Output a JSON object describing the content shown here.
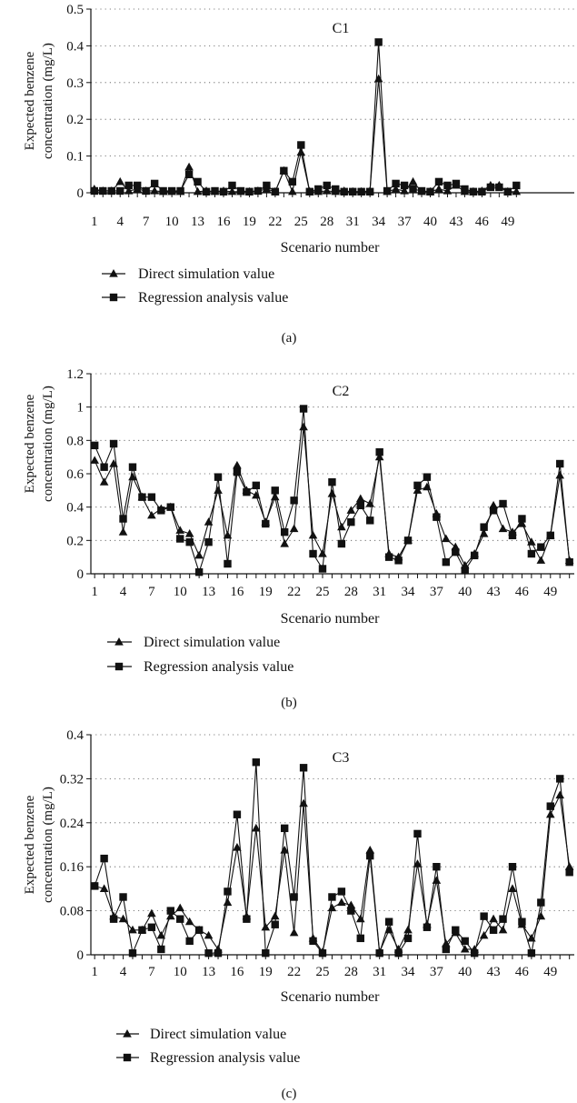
{
  "chart_data": [
    {
      "type": "line",
      "panel_label": "(a)",
      "annotation": "C1",
      "xlabel": "Scenario number",
      "ylabel": [
        "Expected benzene",
        "concentration (mg/L)"
      ],
      "ylim": [
        0,
        0.5
      ],
      "yticks": [
        "0",
        "0.1",
        "0.2",
        "0.3",
        "0.4",
        "0.5"
      ],
      "xticks": [
        1,
        4,
        7,
        10,
        13,
        16,
        19,
        22,
        25,
        28,
        31,
        34,
        37,
        40,
        43,
        46,
        49
      ],
      "grid": "horizontal dotted",
      "x": [
        1,
        2,
        3,
        4,
        5,
        6,
        7,
        8,
        9,
        10,
        11,
        12,
        13,
        14,
        15,
        16,
        17,
        18,
        19,
        20,
        21,
        22,
        23,
        24,
        25,
        26,
        27,
        28,
        29,
        30,
        31,
        32,
        33,
        34,
        35,
        36,
        37,
        38,
        39,
        40,
        41,
        42,
        43,
        44,
        45,
        46,
        47,
        48,
        49,
        50
      ],
      "series": [
        {
          "name": "Direct simulation value",
          "marker": "triangle",
          "values": [
            0.01,
            0.005,
            0.005,
            0.03,
            0.005,
            0.01,
            0.005,
            0.005,
            0.003,
            0.003,
            0.003,
            0.07,
            0.003,
            0.005,
            0.003,
            0.005,
            0.003,
            0.003,
            0.003,
            0.005,
            0.01,
            0.003,
            0.06,
            0.003,
            0.11,
            0.003,
            0.003,
            0.005,
            0.003,
            0.005,
            0.003,
            0.003,
            0.005,
            0.31,
            0.003,
            0.01,
            0.005,
            0.03,
            0.003,
            0.003,
            0.01,
            0.005,
            0.02,
            0.003,
            0.003,
            0.005,
            0.02,
            0.02,
            0.003,
            0.003
          ]
        },
        {
          "name": "Regression analysis value",
          "marker": "square",
          "values": [
            0.005,
            0.005,
            0.005,
            0.005,
            0.02,
            0.02,
            0.005,
            0.025,
            0.005,
            0.005,
            0.005,
            0.05,
            0.03,
            0.003,
            0.005,
            0.003,
            0.02,
            0.005,
            0.003,
            0.005,
            0.02,
            0.003,
            0.06,
            0.03,
            0.13,
            0.003,
            0.01,
            0.02,
            0.01,
            0.003,
            0.003,
            0.003,
            0.003,
            0.41,
            0.005,
            0.025,
            0.02,
            0.01,
            0.005,
            0.003,
            0.03,
            0.02,
            0.025,
            0.01,
            0.003,
            0.003,
            0.015,
            0.015,
            0.003,
            0.02
          ]
        }
      ]
    },
    {
      "type": "line",
      "panel_label": "(b)",
      "annotation": "C2",
      "xlabel": "Scenario number",
      "ylabel": [
        "Expected benzene",
        "concentration (mg/L)"
      ],
      "ylim": [
        0,
        1.2
      ],
      "yticks": [
        "0",
        "0.2",
        "0.4",
        "0.6",
        "0.8",
        "1",
        "1.2"
      ],
      "xticks": [
        1,
        4,
        7,
        10,
        13,
        16,
        19,
        22,
        25,
        28,
        31,
        34,
        37,
        40,
        43,
        46,
        49
      ],
      "grid": "horizontal dotted",
      "x": [
        1,
        2,
        3,
        4,
        5,
        6,
        7,
        8,
        9,
        10,
        11,
        12,
        13,
        14,
        15,
        16,
        17,
        18,
        19,
        20,
        21,
        22,
        23,
        24,
        25,
        26,
        27,
        28,
        29,
        30,
        31,
        32,
        33,
        34,
        35,
        36,
        37,
        38,
        39,
        40,
        41,
        42,
        43,
        44,
        45,
        46,
        47,
        48,
        49,
        50,
        51
      ],
      "series": [
        {
          "name": "Direct simulation value",
          "marker": "triangle",
          "values": [
            0.68,
            0.55,
            0.66,
            0.25,
            0.58,
            0.46,
            0.35,
            0.39,
            0.4,
            0.26,
            0.24,
            0.11,
            0.31,
            0.5,
            0.23,
            0.65,
            0.5,
            0.47,
            0.31,
            0.46,
            0.18,
            0.27,
            0.88,
            0.23,
            0.12,
            0.48,
            0.28,
            0.38,
            0.45,
            0.42,
            0.7,
            0.12,
            0.1,
            0.2,
            0.5,
            0.52,
            0.36,
            0.21,
            0.16,
            0.05,
            0.12,
            0.24,
            0.41,
            0.27,
            0.25,
            0.3,
            0.19,
            0.08,
            0.23,
            0.59,
            0.08
          ]
        },
        {
          "name": "Regression analysis value",
          "marker": "square",
          "values": [
            0.77,
            0.64,
            0.78,
            0.33,
            0.64,
            0.46,
            0.46,
            0.38,
            0.4,
            0.21,
            0.19,
            0.01,
            0.19,
            0.58,
            0.06,
            0.61,
            0.49,
            0.53,
            0.3,
            0.5,
            0.25,
            0.44,
            0.99,
            0.12,
            0.03,
            0.55,
            0.18,
            0.31,
            0.41,
            0.32,
            0.73,
            0.1,
            0.08,
            0.2,
            0.53,
            0.58,
            0.34,
            0.07,
            0.13,
            0.02,
            0.11,
            0.28,
            0.38,
            0.42,
            0.23,
            0.33,
            0.12,
            0.16,
            0.23,
            0.66,
            0.07
          ]
        }
      ]
    },
    {
      "type": "line",
      "panel_label": "(c)",
      "annotation": "C3",
      "xlabel": "Scenario number",
      "ylabel": [
        "Expected benzene",
        "concentration (mg/L)"
      ],
      "ylim": [
        0,
        0.4
      ],
      "yticks": [
        "0",
        "0.08",
        "0.16",
        "0.24",
        "0.32",
        "0.4"
      ],
      "xticks": [
        1,
        4,
        7,
        10,
        13,
        16,
        19,
        22,
        25,
        28,
        31,
        34,
        37,
        40,
        43,
        46,
        49
      ],
      "grid": "horizontal dotted",
      "x": [
        1,
        2,
        3,
        4,
        5,
        6,
        7,
        8,
        9,
        10,
        11,
        12,
        13,
        14,
        15,
        16,
        17,
        18,
        19,
        20,
        21,
        22,
        23,
        24,
        25,
        26,
        27,
        28,
        29,
        30,
        31,
        32,
        33,
        34,
        35,
        36,
        37,
        38,
        39,
        40,
        41,
        42,
        43,
        44,
        45,
        46,
        47,
        48,
        49,
        50,
        51
      ],
      "series": [
        {
          "name": "Direct simulation value",
          "marker": "triangle",
          "values": [
            0.125,
            0.12,
            0.07,
            0.065,
            0.045,
            0.045,
            0.075,
            0.035,
            0.07,
            0.085,
            0.06,
            0.045,
            0.035,
            0.01,
            0.095,
            0.195,
            0.07,
            0.23,
            0.05,
            0.07,
            0.19,
            0.04,
            0.275,
            0.03,
            0.005,
            0.085,
            0.095,
            0.09,
            0.065,
            0.19,
            0.005,
            0.045,
            0.01,
            0.045,
            0.165,
            0.055,
            0.135,
            0.02,
            0.04,
            0.01,
            0.01,
            0.035,
            0.065,
            0.045,
            0.12,
            0.055,
            0.03,
            0.07,
            0.255,
            0.29,
            0.16
          ]
        },
        {
          "name": "Regression analysis value",
          "marker": "square",
          "values": [
            0.125,
            0.175,
            0.065,
            0.105,
            0.003,
            0.045,
            0.05,
            0.01,
            0.08,
            0.065,
            0.025,
            0.045,
            0.003,
            0.003,
            0.115,
            0.255,
            0.065,
            0.35,
            0.003,
            0.055,
            0.23,
            0.105,
            0.34,
            0.025,
            0.003,
            0.105,
            0.115,
            0.08,
            0.03,
            0.18,
            0.003,
            0.06,
            0.003,
            0.03,
            0.22,
            0.05,
            0.16,
            0.01,
            0.045,
            0.025,
            0.003,
            0.07,
            0.045,
            0.065,
            0.16,
            0.06,
            0.003,
            0.095,
            0.27,
            0.32,
            0.15
          ]
        }
      ]
    }
  ]
}
